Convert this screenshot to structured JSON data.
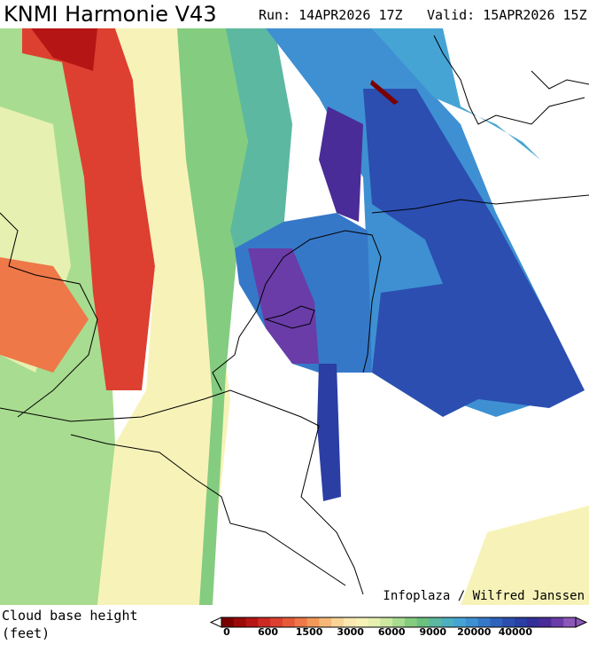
{
  "header": {
    "title": "KNMI Harmonie V43",
    "run": "Run: 14APR2026 17Z",
    "valid": "Valid: 15APR2026 15Z"
  },
  "credit": "Infoplaza / Wilfred Janssen",
  "legend": {
    "title": [
      "Cloud base height",
      "(feet)"
    ],
    "ticks": [
      "0",
      "600",
      "1500",
      "3000",
      "6000",
      "9000",
      "20000",
      "40000"
    ],
    "colors": [
      "#7a0000",
      "#9a0a0a",
      "#b51515",
      "#cc2a22",
      "#dd4030",
      "#e65a3a",
      "#ee7848",
      "#f29858",
      "#f5b878",
      "#f8d498",
      "#fae8b0",
      "#f7f3b8",
      "#e6f0b0",
      "#cce8a0",
      "#a8dc90",
      "#84cc80",
      "#6cc080",
      "#5cb8a0",
      "#4cb0c0",
      "#46a4d4",
      "#3e90d2",
      "#3678c8",
      "#2f62bd",
      "#2b4eb0",
      "#2a3ea4",
      "#33309a",
      "#4a2c98",
      "#6a3ca8",
      "#8c58b8"
    ]
  }
}
